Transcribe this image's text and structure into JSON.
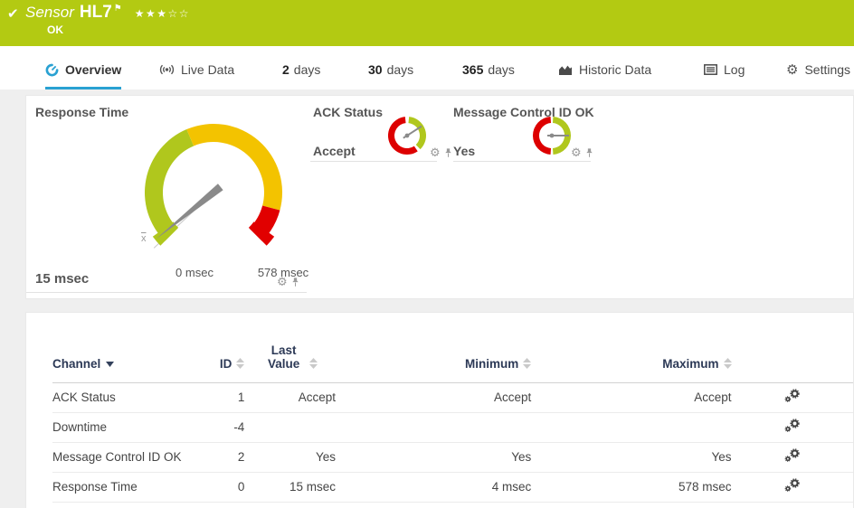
{
  "colors": {
    "status_green": "#b3ca12",
    "accent_blue": "#29a1d2",
    "table_header_navy": "#2c3956",
    "gauge_green": "#b0c71d",
    "gauge_yellow": "#f3c300",
    "gauge_red": "#e10000"
  },
  "header": {
    "kind_label": "Sensor",
    "name": "HL7",
    "status": "OK",
    "stars_filled": "★★★",
    "stars_empty": "☆☆"
  },
  "tabs": [
    {
      "label": "Overview",
      "icon": "gauge-icon",
      "active": true
    },
    {
      "label": "Live Data",
      "icon": "live-icon"
    },
    {
      "num": "2",
      "label": "days"
    },
    {
      "num": "30",
      "label": "days"
    },
    {
      "num": "365",
      "label": "days"
    },
    {
      "label": "Historic Data",
      "icon": "area-chart-icon"
    },
    {
      "label": "Log",
      "icon": "log-icon"
    },
    {
      "label": "Settings",
      "icon": "gear-icon"
    }
  ],
  "gauges": {
    "response_time": {
      "title": "Response Time",
      "value": "15 msec",
      "min_label": "0 msec",
      "max_label": "578 msec",
      "mean_label": "x",
      "inner_r": 56,
      "outer_r": 76,
      "segments": [
        {
          "from": -135,
          "to": -23,
          "color": "#b0c71d"
        },
        {
          "from": -23,
          "to": 105,
          "color": "#f3c300"
        },
        {
          "from": 105,
          "to": 135,
          "color": "#e10000"
        }
      ],
      "needle_angle": -129
    },
    "ack_status": {
      "title": "ACK Status",
      "value": "Accept",
      "inner_r": 14,
      "outer_r": 21,
      "segments": [
        {
          "from": 6,
          "to": 136,
          "color": "#b0c71d"
        },
        {
          "from": 146,
          "to": 354,
          "color": "#dd0000"
        }
      ],
      "needle_angle": 57
    },
    "message_control_id_ok": {
      "title": "Message Control ID OK",
      "value": "Yes",
      "inner_r": 14,
      "outer_r": 21,
      "segments": [
        {
          "from": 4,
          "to": 176,
          "color": "#b0c71d"
        },
        {
          "from": 184,
          "to": 356,
          "color": "#dd0000"
        }
      ],
      "needle_angle": 90
    }
  },
  "table": {
    "columns": [
      {
        "label": "Channel",
        "sort": "desc"
      },
      {
        "label": "ID",
        "sort": "none"
      },
      {
        "label": "Last Value",
        "sort": "none"
      },
      {
        "label": "Minimum",
        "sort": "none"
      },
      {
        "label": "Maximum",
        "sort": "none"
      }
    ],
    "rows": [
      {
        "channel": "ACK Status",
        "id": "1",
        "last": "Accept",
        "min": "Accept",
        "max": "Accept"
      },
      {
        "channel": "Downtime",
        "id": "-4",
        "last": "",
        "min": "",
        "max": ""
      },
      {
        "channel": "Message Control ID OK",
        "id": "2",
        "last": "Yes",
        "min": "Yes",
        "max": "Yes"
      },
      {
        "channel": "Response Time",
        "id": "0",
        "last": "15 msec",
        "min": "4 msec",
        "max": "578 msec"
      }
    ]
  }
}
